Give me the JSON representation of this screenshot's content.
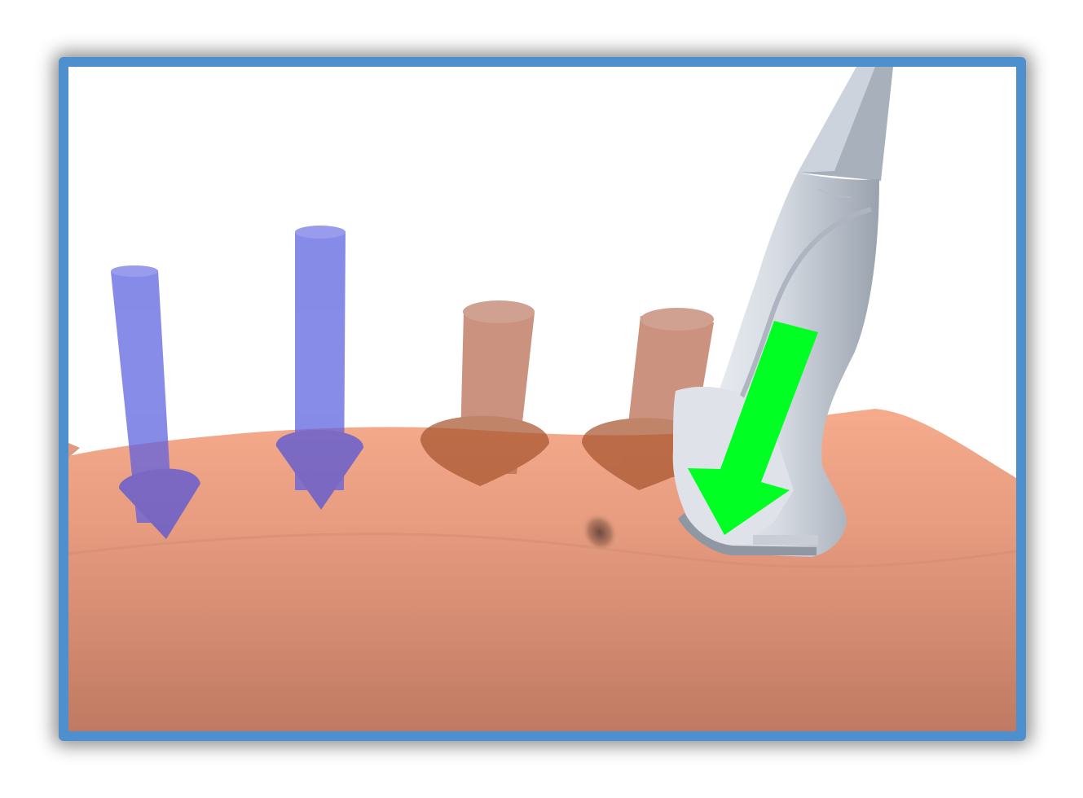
{
  "scene": {
    "description_free": true,
    "frame_color": "#4e8fcd",
    "background_color": "#ffffff",
    "skin_color": "#f2a587",
    "blue_arrow_color": "#5a5fe0",
    "orange_arrow_color": "#b86a4e",
    "green_arrow_color": "#00ff22",
    "probe_color": "#dde2ea"
  }
}
